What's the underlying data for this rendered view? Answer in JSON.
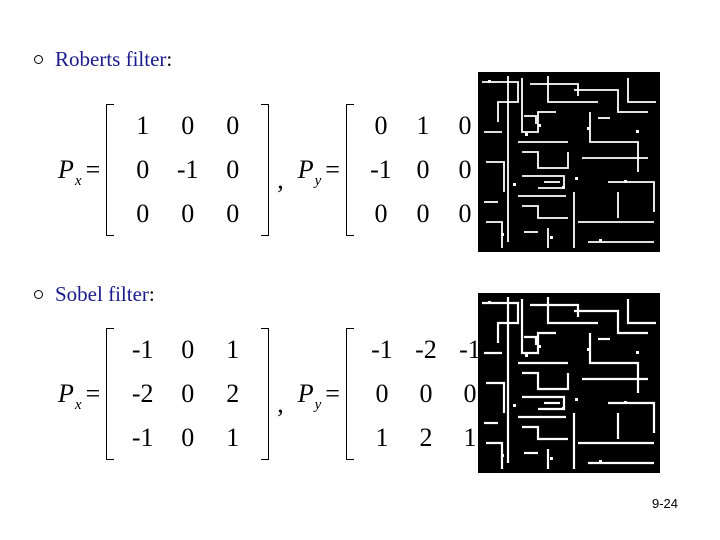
{
  "roberts": {
    "heading": "Roberts filter",
    "colon": ":",
    "px_label": "P",
    "px_sub": "x",
    "py_label": "P",
    "py_sub": "y",
    "equals": "=",
    "separator": ",",
    "px_matrix": [
      [
        "1",
        "0",
        "0"
      ],
      [
        "0",
        "-1",
        "0"
      ],
      [
        "0",
        "0",
        "0"
      ]
    ],
    "py_matrix": [
      [
        "0",
        "1",
        "0"
      ],
      [
        "-1",
        "0",
        "0"
      ],
      [
        "0",
        "0",
        "0"
      ]
    ]
  },
  "sobel": {
    "heading": "Sobel filter",
    "colon": ":",
    "px_label": "P",
    "px_sub": "x",
    "py_label": "P",
    "py_sub": "y",
    "equals": "=",
    "separator": ",",
    "px_matrix": [
      [
        "-1",
        "0",
        "1"
      ],
      [
        "-2",
        "0",
        "2"
      ],
      [
        "-1",
        "0",
        "1"
      ]
    ],
    "py_matrix": [
      [
        "-1",
        "-2",
        "-1"
      ],
      [
        "0",
        "0",
        "0"
      ],
      [
        "1",
        "2",
        "1"
      ]
    ]
  },
  "colors": {
    "heading": "#1a1a8c",
    "image_bg": "#000000",
    "edges": "#ffffff"
  },
  "footer": {
    "page_number": "9-24"
  }
}
